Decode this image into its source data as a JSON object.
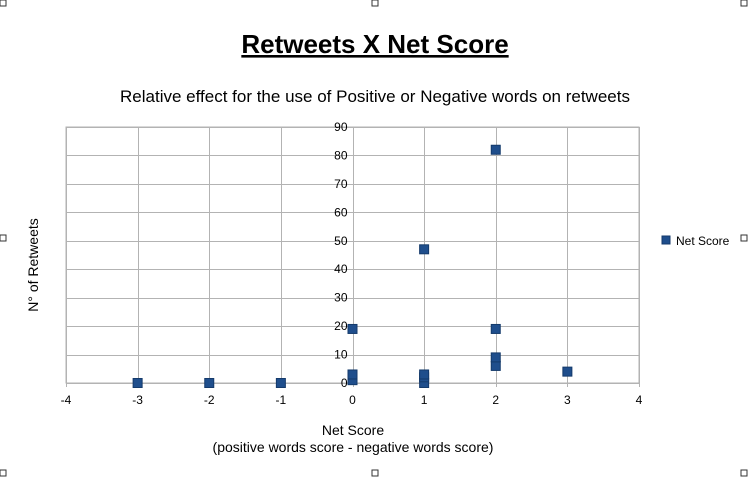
{
  "chart_data": {
    "type": "scatter",
    "title": "Retweets X Net Score",
    "subtitle": "Relative effect for the use of Positive or Negative words on retweets",
    "xlabel": "Net Score",
    "xlabel_sub": "(positive words score - negative words score)",
    "ylabel": "N° of Retweets",
    "xlim": [
      -4,
      4
    ],
    "ylim": [
      0,
      90
    ],
    "x_ticks": [
      -4,
      -3,
      -2,
      -1,
      0,
      1,
      2,
      3,
      4
    ],
    "y_ticks": [
      0,
      10,
      20,
      30,
      40,
      50,
      60,
      70,
      80,
      90
    ],
    "grid": true,
    "legend_position": "right",
    "series": [
      {
        "name": "Net Score",
        "color": "#1f4e8c",
        "points": [
          {
            "x": -3,
            "y": 0
          },
          {
            "x": -2,
            "y": 0
          },
          {
            "x": -1,
            "y": 0
          },
          {
            "x": 0,
            "y": 1
          },
          {
            "x": 0,
            "y": 3
          },
          {
            "x": 0,
            "y": 19
          },
          {
            "x": 1,
            "y": 0
          },
          {
            "x": 1,
            "y": 2
          },
          {
            "x": 1,
            "y": 3
          },
          {
            "x": 1,
            "y": 47
          },
          {
            "x": 2,
            "y": 6
          },
          {
            "x": 2,
            "y": 9
          },
          {
            "x": 2,
            "y": 19
          },
          {
            "x": 2,
            "y": 82
          },
          {
            "x": 3,
            "y": 4
          }
        ]
      }
    ]
  }
}
